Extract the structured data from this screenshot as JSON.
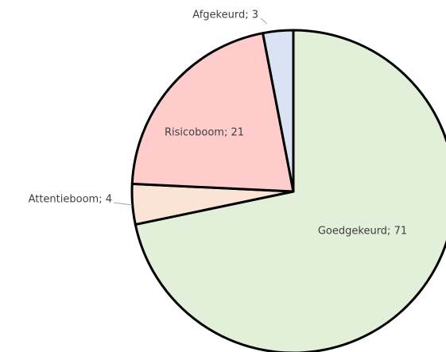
{
  "chart_data": {
    "type": "pie",
    "values": [
      71,
      4,
      21,
      3
    ],
    "value_labels": [
      "Goedgekeurd; 71",
      "Attentieboom; 4",
      "Risicoboom; 21",
      "Afgekeurd; 3"
    ],
    "colors": [
      "#e2efd9",
      "#fbe4d5",
      "#ffcccc",
      "#dae3f3"
    ]
  }
}
